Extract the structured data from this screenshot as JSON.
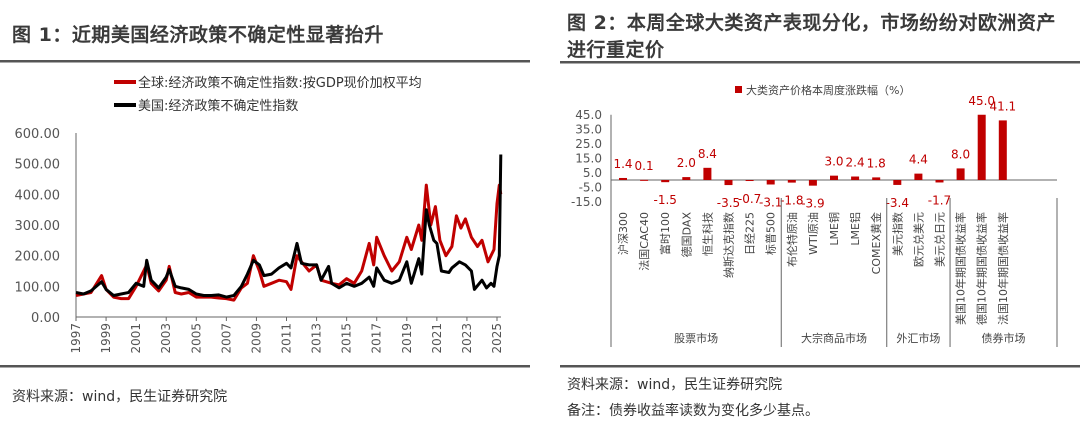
{
  "left": {
    "title": "图 1：近期美国经济政策不确定性显著抬升",
    "source": "资料来源：wind，民生证券研究院",
    "chart_data": {
      "type": "line",
      "title": "",
      "xlabel": "",
      "ylabel": "",
      "ylim": [
        0,
        600
      ],
      "xlim": [
        1997,
        2025.3
      ],
      "yticks": [
        "0.00",
        "100.00",
        "200.00",
        "300.00",
        "400.00",
        "500.00",
        "600.00"
      ],
      "xticks": [
        "1997",
        "1999",
        "2001",
        "2003",
        "2005",
        "2007",
        "2009",
        "2011",
        "2013",
        "2015",
        "2017",
        "2019",
        "2021",
        "2023",
        "2025"
      ],
      "grid": false,
      "legend": "top",
      "series": [
        {
          "name": "全球:经济政策不确定性指数:按GDP现价加权平均",
          "color": "#c00000",
          "x": [
            1997,
            1998,
            1998.7,
            1999,
            1999.5,
            2000,
            2000.5,
            2001,
            2001.7,
            2002,
            2002.5,
            2003,
            2003.2,
            2003.6,
            2004,
            2004.5,
            2005,
            2005.5,
            2006,
            2006.5,
            2007,
            2007.5,
            2008,
            2008.4,
            2008.8,
            2009.2,
            2009.5,
            2010,
            2010.5,
            2011,
            2011.3,
            2011.7,
            2012,
            2012.5,
            2013,
            2013.3,
            2014,
            2014.5,
            2015,
            2015.5,
            2016,
            2016.5,
            2016.8,
            2017,
            2017.5,
            2018,
            2018.5,
            2019,
            2019.3,
            2019.8,
            2020,
            2020.3,
            2020.6,
            2020.9,
            2021.2,
            2021.6,
            2022,
            2022.3,
            2022.6,
            2022.9,
            2023.3,
            2023.7,
            2024,
            2024.4,
            2024.8,
            2025,
            2025.15,
            2025.25
          ],
          "y": [
            70,
            80,
            135,
            90,
            65,
            60,
            60,
            100,
            170,
            110,
            85,
            120,
            165,
            80,
            75,
            80,
            65,
            65,
            65,
            62,
            60,
            55,
            95,
            110,
            200,
            150,
            100,
            110,
            120,
            115,
            90,
            200,
            180,
            150,
            170,
            120,
            110,
            105,
            125,
            110,
            150,
            240,
            170,
            260,
            200,
            150,
            180,
            260,
            220,
            300,
            250,
            430,
            300,
            360,
            250,
            200,
            230,
            330,
            290,
            320,
            260,
            230,
            250,
            180,
            220,
            370,
            430,
            400
          ]
        },
        {
          "name": "美国:经济政策不确定性指数",
          "color": "#000000",
          "x": [
            1997,
            1997.5,
            1998,
            1998.7,
            1999,
            1999.5,
            2000,
            2000.5,
            2001,
            2001.5,
            2001.7,
            2002,
            2002.5,
            2003,
            2003.2,
            2003.6,
            2004,
            2004.5,
            2005,
            2005.5,
            2006,
            2006.5,
            2007,
            2007.5,
            2008,
            2008.4,
            2008.8,
            2009.2,
            2009.5,
            2010,
            2010.5,
            2011,
            2011.3,
            2011.7,
            2012,
            2012.5,
            2013,
            2013.3,
            2013.8,
            2014,
            2014.5,
            2015,
            2015.5,
            2016,
            2016.5,
            2016.8,
            2017,
            2017.5,
            2018,
            2018.5,
            2019,
            2019.3,
            2019.8,
            2020,
            2020.3,
            2020.5,
            2020.8,
            2021,
            2021.3,
            2021.8,
            2022,
            2022.5,
            2022.9,
            2023.3,
            2023.5,
            2024,
            2024.3,
            2024.6,
            2024.8,
            2025,
            2025.15,
            2025.25
          ],
          "y": [
            80,
            75,
            85,
            115,
            90,
            70,
            75,
            80,
            110,
            100,
            185,
            120,
            95,
            130,
            155,
            100,
            95,
            90,
            75,
            70,
            70,
            72,
            65,
            70,
            100,
            140,
            185,
            170,
            135,
            140,
            160,
            175,
            160,
            240,
            175,
            170,
            170,
            120,
            165,
            110,
            95,
            110,
            100,
            110,
            130,
            100,
            160,
            120,
            110,
            120,
            180,
            110,
            190,
            140,
            350,
            300,
            250,
            240,
            150,
            145,
            160,
            180,
            170,
            150,
            90,
            120,
            95,
            110,
            100,
            165,
            200,
            530
          ]
        }
      ]
    }
  },
  "right": {
    "title": "图 2：本周全球大类资产表现分化，市场纷纷对欧洲资产进行重定价",
    "source": "资料来源：wind，民生证券研究院",
    "note": "备注：债券收益率读数为变化多少基点。",
    "chart_data": {
      "type": "bar",
      "title": "",
      "legend": "top",
      "ylim": [
        -15,
        45
      ],
      "yticks": [
        "-15.0",
        "-5.0",
        "5.0",
        "15.0",
        "25.0",
        "35.0",
        "45.0"
      ],
      "grid": false,
      "series": [
        {
          "name": "大类资产价格本周度涨跌幅（%）",
          "color": "#c00000"
        }
      ],
      "categories": [
        "沪深300",
        "法国CAC40",
        "富时100",
        "德国DAX",
        "恒生科技",
        "纳斯达克指数",
        "日经225",
        "标普500",
        "布伦特原油",
        "WTI原油",
        "LME铜",
        "LME铝",
        "COMEX黄金",
        "美元指数",
        "欧元兑美元",
        "美元兑日元",
        "美国10年期国债收益率",
        "德国10年期国债收益率",
        "法国10年期国债收益率"
      ],
      "values": [
        1.4,
        0.1,
        -1.5,
        2.0,
        8.4,
        -3.5,
        -0.7,
        -3.1,
        -1.8,
        -3.9,
        3.0,
        2.4,
        1.8,
        -3.4,
        4.4,
        -1.7,
        8.0,
        45.0,
        41.1
      ],
      "data_labels": [
        "1.4",
        "0.1",
        "-1.5",
        "2.0",
        "8.4",
        "-3.5",
        "-0.7",
        "-3.1",
        "-1.8",
        "-3.9",
        "3.0",
        "2.4",
        "1.8",
        "-3.4",
        "4.4",
        "-1.7",
        "8.0",
        "45.0",
        "41.1"
      ],
      "groups": [
        {
          "label": "股票市场",
          "count": 8
        },
        {
          "label": "大宗商品市场",
          "count": 5
        },
        {
          "label": "外汇市场",
          "count": 3
        },
        {
          "label": "债券市场",
          "count": 3
        }
      ]
    }
  }
}
